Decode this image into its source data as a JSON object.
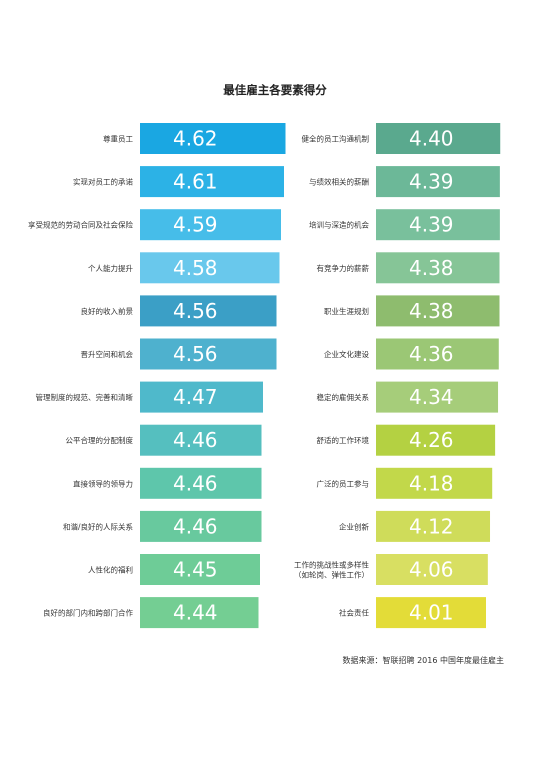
{
  "chart_data": [
    {
      "type": "bar",
      "title": "最佳雇主各要素得分",
      "orientation": "horizontal",
      "categories": [
        "尊重员工",
        "实现对员工的承诺",
        "享受规范的劳动合同及社会保险",
        "个人能力提升",
        "良好的收入前景",
        "晋升空间和机会",
        "管理制度的规范、完善和清晰",
        "公平合理的分配制度",
        "直接领导的领导力",
        "和谐/良好的人际关系",
        "人性化的福利",
        "良好的部门内和跨部门合作"
      ],
      "values": [
        4.62,
        4.61,
        4.59,
        4.58,
        4.56,
        4.56,
        4.47,
        4.46,
        4.46,
        4.46,
        4.45,
        4.44
      ],
      "value_labels": [
        "4.62",
        "4.61",
        "4.59",
        "4.58",
        "4.56",
        "4.56",
        "4.47",
        "4.46",
        "4.46",
        "4.46",
        "4.45",
        "4.44"
      ],
      "colors": [
        "#1aa7e2",
        "#2cb2e6",
        "#46bde9",
        "#69c8ec",
        "#3b9fc6",
        "#4eb1ce",
        "#4fb9cb",
        "#55bfbf",
        "#5ec6ab",
        "#68c99e",
        "#6ecc97",
        "#74ce93"
      ]
    },
    {
      "type": "bar",
      "orientation": "horizontal",
      "categories": [
        "健全的员工沟通机制",
        "与绩效相关的薪酬",
        "培训与深造的机会",
        "有竞争力的薪薪",
        "职业生涯规划",
        "企业文化建设",
        "稳定的雇佣关系",
        "舒适的工作环境",
        "广泛的员工参与",
        "企业创新",
        "工作的挑战性或多样性\n（如轮岗、弹性工作）",
        "社会责任"
      ],
      "values": [
        4.4,
        4.39,
        4.39,
        4.38,
        4.38,
        4.36,
        4.34,
        4.26,
        4.18,
        4.12,
        4.06,
        4.01
      ],
      "value_labels": [
        "4.40",
        "4.39",
        "4.39",
        "4.38",
        "4.38",
        "4.36",
        "4.34",
        "4.26",
        "4.18",
        "4.12",
        "4.06",
        "4.01"
      ],
      "colors": [
        "#5aa98e",
        "#6cb898",
        "#79c09c",
        "#86c597",
        "#8ebc6e",
        "#9bc775",
        "#a6cd7a",
        "#b4d142",
        "#c2d84a",
        "#cfdc5a",
        "#d8df62",
        "#e3dc38"
      ]
    }
  ],
  "source_note": "数据来源：智联招聘 2016 中国年度最佳雇主"
}
